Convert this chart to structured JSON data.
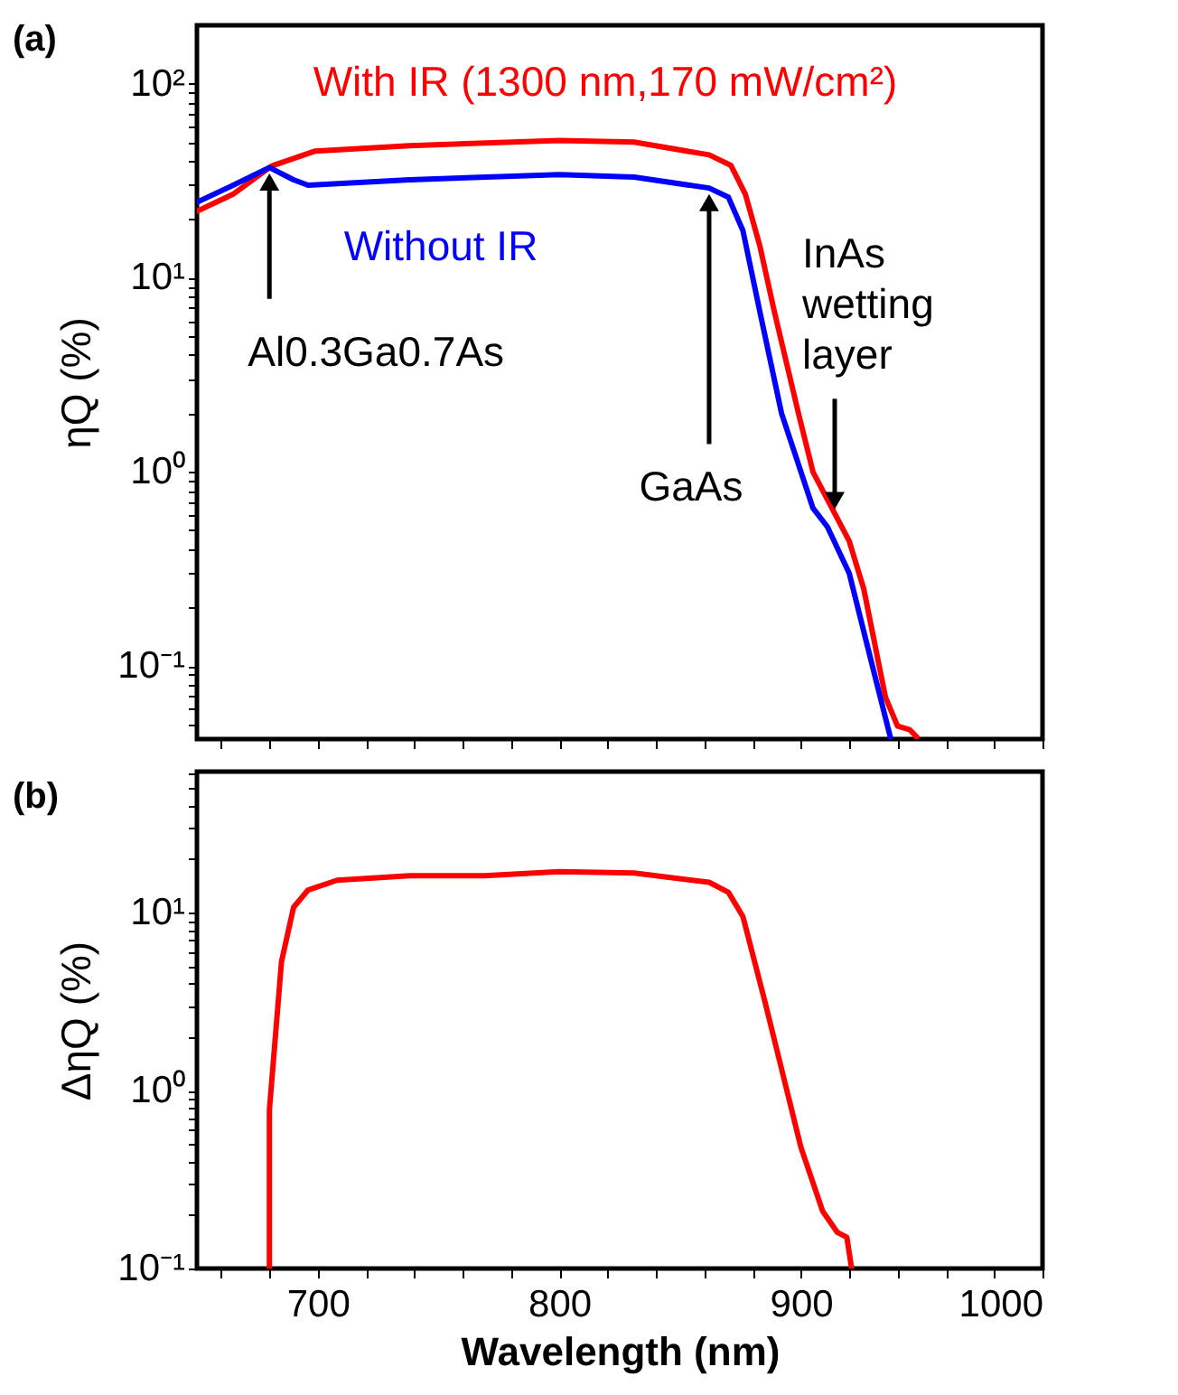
{
  "chart_data": [
    {
      "type": "line",
      "ylabel": "ηQ (%)",
      "log": true,
      "grid": false,
      "tick_labels": "y",
      "line_style": "solid",
      "xlim": [
        650,
        1000
      ],
      "xticks": [
        {
          "value": 660,
          "label": null
        },
        {
          "value": 680,
          "label": null
        },
        700,
        {
          "value": 720,
          "label": null
        },
        {
          "value": 740,
          "label": null
        },
        {
          "value": 760,
          "label": null
        },
        {
          "value": 780,
          "label": null
        },
        800,
        {
          "value": 820,
          "label": null
        },
        {
          "value": 840,
          "label": null
        },
        {
          "value": 860,
          "label": null
        },
        {
          "value": 880,
          "label": null
        },
        900,
        {
          "value": 920,
          "label": null
        },
        {
          "value": 940,
          "label": null
        },
        {
          "value": 960,
          "label": null
        },
        {
          "value": 980,
          "label": null
        },
        1000
      ],
      "ylim": [
        0.042,
        200
      ],
      "yticks": [
        {
          "value": 0.05,
          "label": null
        },
        {
          "value": 0.06,
          "label": null
        },
        {
          "value": 0.07,
          "label": null
        },
        {
          "value": 0.08,
          "label": null
        },
        {
          "value": 0.09,
          "label": null
        },
        {
          "value": 0.1,
          "label": "10⁻¹"
        },
        {
          "value": 0.2,
          "label": null
        },
        {
          "value": 0.3,
          "label": null
        },
        {
          "value": 0.4,
          "label": null
        },
        {
          "value": 0.5,
          "label": null
        },
        {
          "value": 0.6,
          "label": null
        },
        {
          "value": 0.7,
          "label": null
        },
        {
          "value": 0.8,
          "label": null
        },
        {
          "value": 0.9,
          "label": null
        },
        {
          "value": 1,
          "label": "10⁰"
        },
        {
          "value": 2,
          "label": null
        },
        {
          "value": 3,
          "label": null
        },
        {
          "value": 4,
          "label": null
        },
        {
          "value": 5,
          "label": null
        },
        {
          "value": 6,
          "label": null
        },
        {
          "value": 7,
          "label": null
        },
        {
          "value": 8,
          "label": null
        },
        {
          "value": 9,
          "label": null
        },
        {
          "value": 10,
          "label": "10¹"
        },
        {
          "value": 20,
          "label": null
        },
        {
          "value": 30,
          "label": null
        },
        {
          "value": 40,
          "label": null
        },
        {
          "value": 50,
          "label": null
        },
        {
          "value": 60,
          "label": null
        },
        {
          "value": 70,
          "label": null
        },
        {
          "value": 80,
          "label": null
        },
        {
          "value": 90,
          "label": null
        },
        {
          "value": 100,
          "label": "10²"
        }
      ],
      "series": [
        {
          "name": "With IR (1300 nm,170 mW/cm²)",
          "color": "#ff0000",
          "x": [
            650,
            665,
            681,
            699,
            738,
            800,
            831,
            862,
            871,
            877,
            883,
            889,
            899,
            905,
            920,
            926,
            935,
            940,
            945,
            948
          ],
          "values": [
            22,
            27,
            37.7,
            45,
            48,
            51,
            50,
            43,
            38,
            27,
            14.6,
            6.7,
            2.0,
            1.0,
            0.44,
            0.25,
            0.069,
            0.049,
            0.047,
            0.043
          ]
        },
        {
          "name": "Without IR",
          "color": "#0000ff",
          "x": [
            650,
            665,
            680,
            690,
            696,
            738,
            800,
            831,
            862,
            870,
            876,
            883,
            892,
            905,
            911,
            920,
            929,
            937
          ],
          "values": [
            24.5,
            30,
            37,
            32,
            30,
            32,
            34,
            33,
            29,
            26,
            17.5,
            6.7,
            2.0,
            0.65,
            0.52,
            0.3,
            0.107,
            0.043
          ]
        }
      ],
      "annotations": [
        "(a)",
        {
          "text": "Al0.3Ga0.7As",
          "x": 680,
          "y": 37
        },
        {
          "text": "GaAs",
          "x": 862,
          "y": 29
        },
        {
          "text": "InAs wetting layer",
          "x": 914,
          "y": 0.6
        }
      ]
    },
    {
      "type": "line",
      "ylabel": "ΔηQ (%)",
      "xlabel": "Wavelength (nm)",
      "log": true,
      "grid": false,
      "line_style": "solid",
      "xlim": [
        650,
        1000
      ],
      "xticks": [
        {
          "value": 660,
          "label": null
        },
        {
          "value": 680,
          "label": null
        },
        700,
        {
          "value": 720,
          "label": null
        },
        {
          "value": 740,
          "label": null
        },
        {
          "value": 760,
          "label": null
        },
        {
          "value": 780,
          "label": null
        },
        800,
        {
          "value": 820,
          "label": null
        },
        {
          "value": 840,
          "label": null
        },
        {
          "value": 860,
          "label": null
        },
        {
          "value": 880,
          "label": null
        },
        900,
        {
          "value": 920,
          "label": null
        },
        {
          "value": 940,
          "label": null
        },
        {
          "value": 960,
          "label": null
        },
        {
          "value": 980,
          "label": null
        },
        1000
      ],
      "ylim": [
        0.1,
        62
      ],
      "yticks": [
        {
          "value": 0.1,
          "label": "10⁻¹"
        },
        {
          "value": 0.2,
          "label": null
        },
        {
          "value": 0.3,
          "label": null
        },
        {
          "value": 0.4,
          "label": null
        },
        {
          "value": 0.5,
          "label": null
        },
        {
          "value": 0.6,
          "label": null
        },
        {
          "value": 0.7,
          "label": null
        },
        {
          "value": 0.8,
          "label": null
        },
        {
          "value": 0.9,
          "label": null
        },
        {
          "value": 1,
          "label": "10⁰"
        },
        {
          "value": 2,
          "label": null
        },
        {
          "value": 3,
          "label": null
        },
        {
          "value": 4,
          "label": null
        },
        {
          "value": 5,
          "label": null
        },
        {
          "value": 6,
          "label": null
        },
        {
          "value": 7,
          "label": null
        },
        {
          "value": 8,
          "label": null
        },
        {
          "value": 9,
          "label": null
        },
        {
          "value": 10,
          "label": "10¹"
        },
        {
          "value": 20,
          "label": null
        },
        {
          "value": 30,
          "label": null
        },
        {
          "value": 40,
          "label": null
        },
        {
          "value": 50,
          "label": null
        },
        {
          "value": 60,
          "label": null
        }
      ],
      "series": [
        {
          "color": "#ff0000",
          "x": [
            680,
            680,
            685,
            690,
            696,
            708,
            738,
            769,
            800,
            831,
            862,
            870,
            876,
            885,
            891,
            900,
            909,
            915,
            919,
            921
          ],
          "values": [
            0.1,
            0.78,
            5.3,
            10.7,
            13.4,
            15.2,
            16.1,
            16.1,
            17,
            16.7,
            14.8,
            13,
            9.5,
            3.2,
            1.5,
            0.48,
            0.21,
            0.16,
            0.15,
            0.1
          ]
        }
      ],
      "annotations": [
        "(b)"
      ]
    }
  ]
}
